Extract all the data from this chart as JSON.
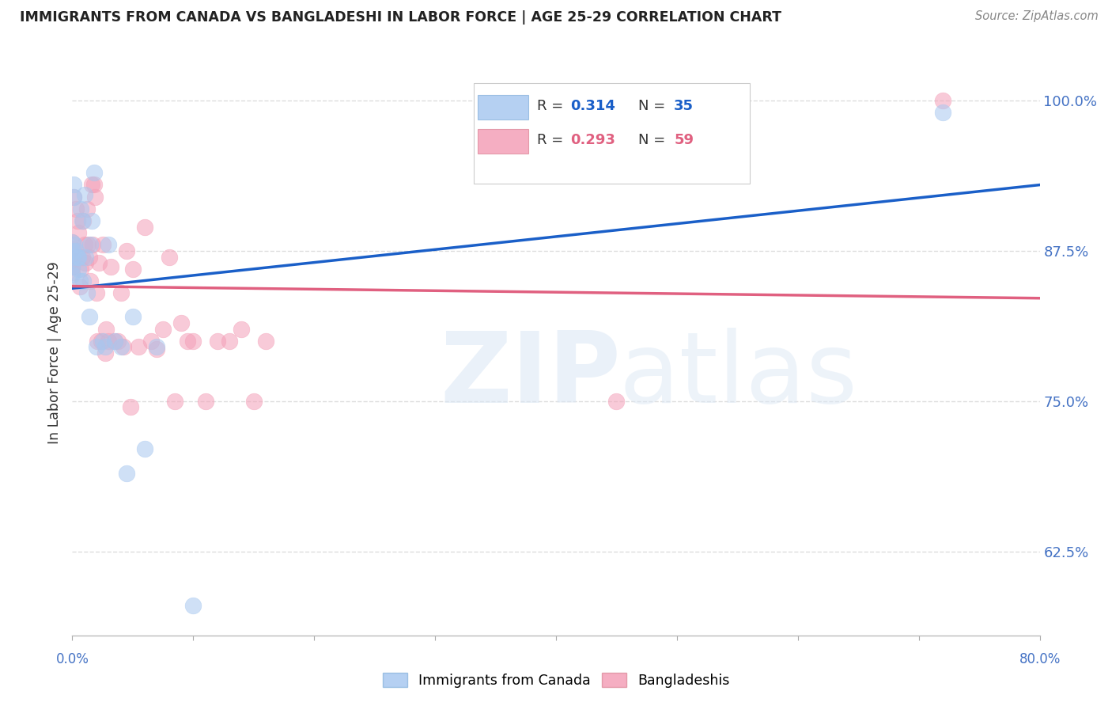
{
  "title": "IMMIGRANTS FROM CANADA VS BANGLADESHI IN LABOR FORCE | AGE 25-29 CORRELATION CHART",
  "source": "Source: ZipAtlas.com",
  "ylabel": "In Labor Force | Age 25-29",
  "xlim": [
    0.0,
    0.8
  ],
  "ylim": [
    0.555,
    1.025
  ],
  "canada_color": "#a8c8f0",
  "bangla_color": "#f4a0b8",
  "canada_line_color": "#1a5fc8",
  "bangla_line_color": "#e06080",
  "canada_x": [
    0.0,
    0.0,
    0.0,
    0.0,
    0.0,
    0.001,
    0.001,
    0.002,
    0.003,
    0.004,
    0.005,
    0.005,
    0.006,
    0.007,
    0.008,
    0.009,
    0.01,
    0.011,
    0.012,
    0.014,
    0.015,
    0.016,
    0.018,
    0.02,
    0.025,
    0.027,
    0.03,
    0.035,
    0.04,
    0.045,
    0.05,
    0.06,
    0.07,
    0.1,
    0.72
  ],
  "canada_y": [
    0.882,
    0.875,
    0.87,
    0.862,
    0.855,
    0.93,
    0.92,
    0.88,
    0.875,
    0.87,
    0.87,
    0.86,
    0.85,
    0.91,
    0.9,
    0.85,
    0.922,
    0.87,
    0.84,
    0.82,
    0.88,
    0.9,
    0.94,
    0.795,
    0.8,
    0.795,
    0.88,
    0.8,
    0.795,
    0.69,
    0.82,
    0.71,
    0.795,
    0.58,
    0.99
  ],
  "bangla_x": [
    0.0,
    0.0,
    0.0,
    0.0,
    0.0,
    0.0,
    0.001,
    0.002,
    0.003,
    0.004,
    0.005,
    0.006,
    0.007,
    0.008,
    0.009,
    0.01,
    0.011,
    0.012,
    0.013,
    0.014,
    0.015,
    0.016,
    0.017,
    0.018,
    0.019,
    0.02,
    0.021,
    0.022,
    0.024,
    0.025,
    0.027,
    0.028,
    0.03,
    0.032,
    0.035,
    0.038,
    0.04,
    0.042,
    0.045,
    0.048,
    0.05,
    0.055,
    0.06,
    0.065,
    0.07,
    0.075,
    0.08,
    0.085,
    0.09,
    0.095,
    0.1,
    0.11,
    0.12,
    0.13,
    0.14,
    0.15,
    0.16,
    0.45,
    0.72
  ],
  "bangla_y": [
    0.882,
    0.877,
    0.872,
    0.867,
    0.862,
    0.857,
    0.92,
    0.87,
    0.91,
    0.9,
    0.89,
    0.845,
    0.86,
    0.87,
    0.9,
    0.88,
    0.865,
    0.91,
    0.88,
    0.87,
    0.85,
    0.93,
    0.88,
    0.93,
    0.92,
    0.84,
    0.8,
    0.865,
    0.8,
    0.88,
    0.79,
    0.81,
    0.8,
    0.862,
    0.8,
    0.8,
    0.84,
    0.795,
    0.875,
    0.745,
    0.86,
    0.795,
    0.895,
    0.8,
    0.793,
    0.81,
    0.87,
    0.75,
    0.815,
    0.8,
    0.8,
    0.75,
    0.8,
    0.8,
    0.81,
    0.75,
    0.8,
    0.75,
    1.0
  ],
  "background_color": "#ffffff",
  "grid_color": "#dddddd",
  "title_color": "#222222",
  "source_color": "#888888",
  "axis_color": "#4472c4"
}
